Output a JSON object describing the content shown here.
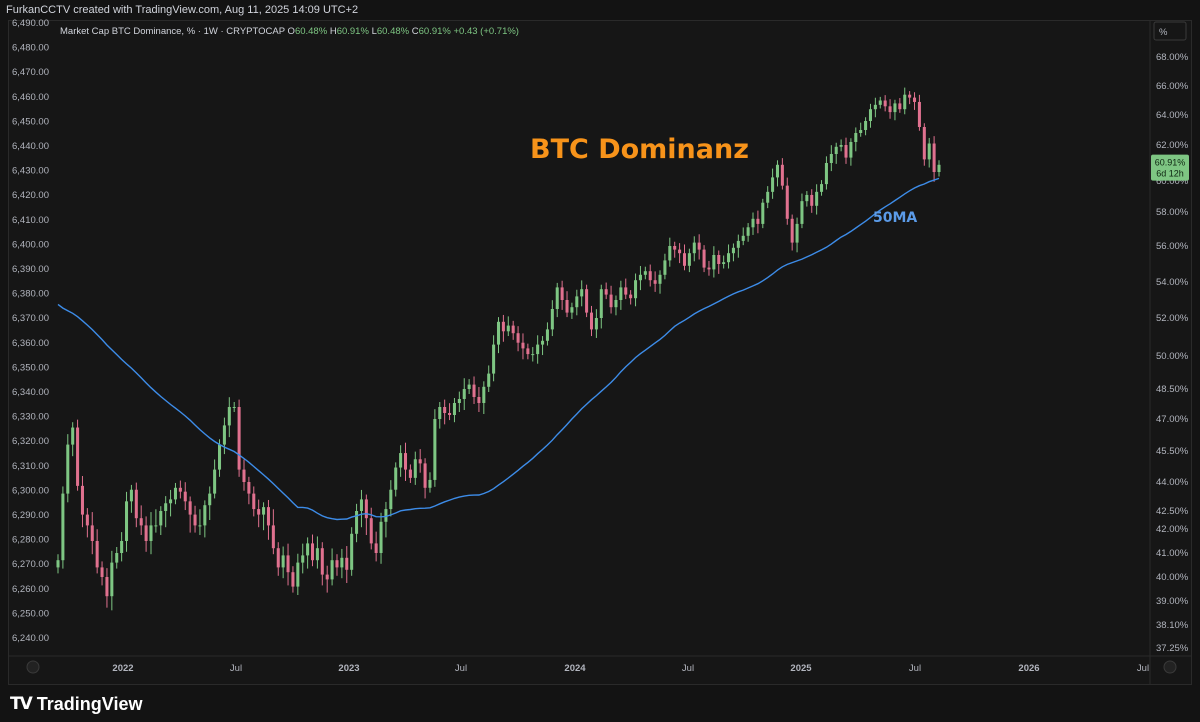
{
  "header": {
    "created_line": "FurkanCCTV created with TradingView.com, Aug 11, 2025 14:09 UTC+2"
  },
  "legend": {
    "symbol": "Market Cap BTC Dominance, % · 1W · CRYPTOCAP",
    "o_label": "O",
    "o_value": "60.48%",
    "h_label": "H",
    "h_value": "60.91%",
    "l_label": "L",
    "l_value": "60.48%",
    "c_label": "C",
    "c_value": "60.91%",
    "change": "+0.43 (+0.71%)"
  },
  "price_tag": {
    "value": "60.91%",
    "countdown": "6d 12h"
  },
  "percent_unit": "%",
  "footer": {
    "brand": "TradingView"
  },
  "colors": {
    "up": "#7ec683",
    "down": "#e0718f",
    "ma": "#3d8ce8",
    "title": "#f7931a",
    "ma_label": "#5b9be8",
    "bg": "#161616"
  },
  "chart_data": {
    "type": "candlestick",
    "title": "BTC Dominanz",
    "annotation": "50MA",
    "left_axis_ticks": [
      "6,490.00",
      "6,480.00",
      "6,470.00",
      "6,460.00",
      "6,450.00",
      "6,440.00",
      "6,430.00",
      "6,420.00",
      "6,410.00",
      "6,400.00",
      "6,390.00",
      "6,380.00",
      "6,370.00",
      "6,360.00",
      "6,350.00",
      "6,340.00",
      "6,330.00",
      "6,320.00",
      "6,310.00",
      "6,300.00",
      "6,290.00",
      "6,280.00",
      "6,270.00",
      "6,260.00",
      "6,250.00",
      "6,240.00"
    ],
    "right_axis_ticks": [
      "68.00%",
      "66.00%",
      "64.00%",
      "62.00%",
      "60.00%",
      "58.00%",
      "56.00%",
      "54.00%",
      "52.00%",
      "50.00%",
      "48.50%",
      "47.00%",
      "45.50%",
      "44.00%",
      "42.50%",
      "42.00%",
      "41.00%",
      "40.00%",
      "39.00%",
      "38.10%",
      "37.25%"
    ],
    "x_ticks": [
      "2022",
      "Jul",
      "2023",
      "Jul",
      "2024",
      "Jul",
      "2025",
      "Jul",
      "2026",
      "Jul"
    ],
    "weekly_close_pct": [
      40.7,
      43.4,
      45.8,
      46.6,
      43.8,
      42.4,
      42.1,
      41.5,
      40.4,
      40.0,
      39.2,
      40.6,
      41.0,
      41.5,
      43.0,
      43.6,
      42.3,
      42.1,
      41.5,
      42.1,
      42.1,
      42.5,
      42.9,
      43.1,
      43.7,
      43.5,
      43.0,
      42.4,
      42.1,
      42.1,
      42.8,
      43.4,
      44.6,
      45.8,
      46.7,
      47.6,
      47.6,
      44.6,
      44.0,
      43.4,
      42.6,
      42.4,
      42.7,
      42.1,
      41.2,
      40.4,
      40.9,
      40.2,
      39.6,
      40.6,
      40.9,
      41.4,
      40.7,
      41.2,
      40.1,
      39.9,
      40.7,
      40.4,
      40.8,
      40.3,
      41.8,
      42.5,
      43.1,
      42.3,
      41.4,
      41.0,
      42.2,
      42.6,
      43.6,
      44.7,
      45.4,
      44.6,
      44.2,
      45.1,
      44.9,
      43.7,
      44.1,
      47.0,
      47.6,
      47.3,
      47.2,
      47.8,
      48.0,
      48.5,
      48.7,
      48.1,
      47.8,
      48.6,
      49.2,
      50.6,
      51.8,
      51.3,
      51.6,
      51.2,
      50.7,
      50.4,
      50.1,
      50.1,
      50.6,
      50.8,
      51.4,
      52.5,
      53.7,
      53.0,
      52.3,
      52.6,
      53.2,
      53.6,
      52.3,
      51.4,
      52.0,
      53.6,
      53.3,
      52.6,
      53.0,
      53.7,
      53.3,
      53.1,
      54.1,
      54.4,
      54.6,
      54.1,
      53.9,
      54.4,
      55.2,
      56.0,
      55.8,
      55.6,
      54.9,
      55.6,
      56.2,
      55.8,
      54.8,
      54.7,
      55.5,
      55.0,
      55.1,
      55.6,
      55.9,
      56.3,
      56.6,
      57.1,
      57.6,
      57.3,
      58.6,
      59.3,
      60.2,
      60.9,
      59.7,
      57.6,
      56.2,
      57.3,
      58.7,
      59.1,
      58.4,
      59.3,
      59.8,
      61.0,
      61.5,
      61.9,
      62.0,
      61.3,
      62.2,
      62.8,
      63.0,
      63.6,
      64.4,
      64.7,
      65.0,
      64.6,
      64.2,
      64.8,
      64.4,
      65.4,
      65.2,
      64.9,
      63.2,
      61.2,
      62.1,
      60.5,
      60.9
    ]
  }
}
